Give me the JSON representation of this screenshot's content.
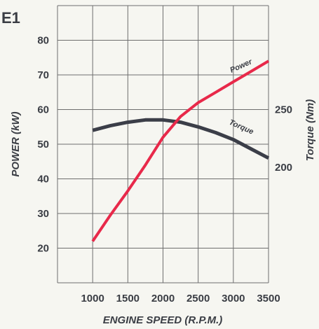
{
  "figure_label": "E1",
  "chart_data": {
    "type": "line",
    "title": "",
    "xlabel": "ENGINE SPEED (R.P.M.)",
    "ylabel": "POWER (kW)",
    "y2label": "Torque (Nm)",
    "xlim": [
      500,
      3500
    ],
    "ylim": [
      10,
      90
    ],
    "y2lim": [
      100,
      340
    ],
    "x_ticks": [
      "1000",
      "1500",
      "2000",
      "2500",
      "3000",
      "3500"
    ],
    "y_ticks": [
      "20",
      "30",
      "40",
      "50",
      "60",
      "70",
      "80"
    ],
    "y2_ticks": [
      "200",
      "250"
    ],
    "grid": true,
    "colors": {
      "power": "#e8294a",
      "torque": "#3b3e48",
      "grid": "#6e6e6e",
      "text": "#3a3d44"
    },
    "series": [
      {
        "name": "Power",
        "axis": "left",
        "x": [
          1000,
          1250,
          1500,
          1750,
          2000,
          2250,
          2500,
          2750,
          3000,
          3250,
          3500
        ],
        "y": [
          22,
          29.5,
          36.5,
          44,
          52,
          58,
          62,
          65,
          68,
          71,
          74
        ]
      },
      {
        "name": "Torque",
        "axis": "right",
        "x": [
          1000,
          1250,
          1500,
          1750,
          2000,
          2250,
          2500,
          2750,
          3000,
          3250,
          3500
        ],
        "y": [
          232,
          236,
          239,
          241,
          241,
          239,
          235,
          230,
          224,
          216,
          208
        ]
      }
    ]
  }
}
